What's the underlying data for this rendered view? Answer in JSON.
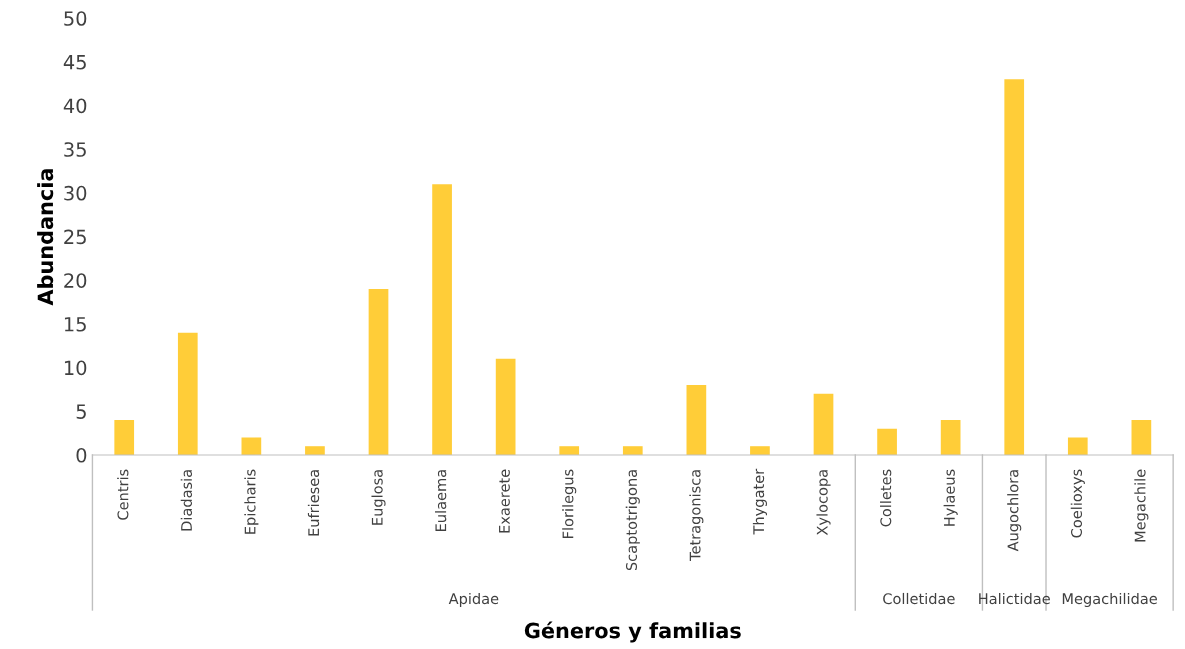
{
  "chart_data": {
    "type": "bar",
    "xlabel": "Géneros y familias",
    "ylabel": "Abundancia",
    "categories": [
      "Centris",
      "Diadasia",
      "Epicharis",
      "Eufriesea",
      "Euglosa",
      "Eulaema",
      "Exaerete",
      "Florilegus",
      "Scaptotrigona",
      "Tetragonisca",
      "Thygater",
      "Xylocopa",
      "Colletes",
      "Hylaeus",
      "Augochlora",
      "Coelioxys",
      "Megachile"
    ],
    "values": [
      4,
      14,
      2,
      1,
      19,
      31,
      11,
      1,
      1,
      8,
      1,
      7,
      3,
      4,
      43,
      2,
      4
    ],
    "color": "#ffcd38",
    "ylim": [
      0,
      50
    ],
    "yticks": [
      0,
      5,
      10,
      15,
      20,
      25,
      30,
      35,
      40,
      45,
      50
    ],
    "grid": false,
    "annotations": [
      "Apidae",
      "Colletidae",
      "Halictidae",
      "Megachilidae"
    ]
  }
}
